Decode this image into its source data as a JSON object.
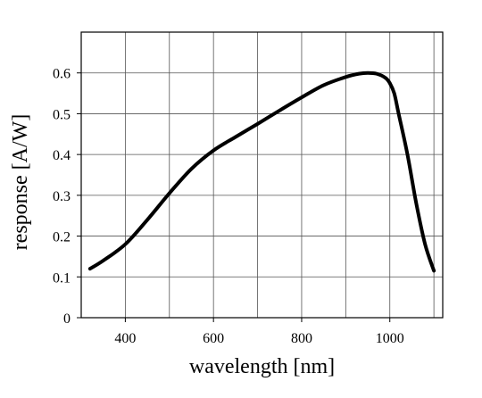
{
  "chart_data": {
    "type": "line",
    "title": "",
    "xlabel": "wavelength [nm]",
    "ylabel": "response [A/W]",
    "xlim": [
      300,
      1120
    ],
    "ylim": [
      0,
      0.7
    ],
    "grid": true,
    "legend": "none",
    "x_ticks": [
      {
        "value": 400,
        "label": "400"
      },
      {
        "value": 600,
        "label": "600"
      },
      {
        "value": 800,
        "label": "800"
      },
      {
        "value": 1000,
        "label": "1000"
      }
    ],
    "x_grid": [
      400,
      500,
      600,
      700,
      800,
      900,
      1000,
      1100
    ],
    "y_ticks": [
      {
        "value": 0,
        "label": "0"
      },
      {
        "value": 0.1,
        "label": "0.1"
      },
      {
        "value": 0.2,
        "label": "0.2"
      },
      {
        "value": 0.3,
        "label": "0.3"
      },
      {
        "value": 0.4,
        "label": "0.4"
      },
      {
        "value": 0.5,
        "label": "0.5"
      },
      {
        "value": 0.6,
        "label": "0.6"
      }
    ],
    "series": [
      {
        "color": "#000000",
        "x": [
          320,
          350,
          400,
          450,
          500,
          550,
          600,
          650,
          700,
          750,
          800,
          850,
          900,
          930,
          950,
          970,
          990,
          1000,
          1010,
          1020,
          1040,
          1060,
          1080,
          1100
        ],
        "y": [
          0.12,
          0.14,
          0.18,
          0.24,
          0.305,
          0.365,
          0.41,
          0.443,
          0.475,
          0.508,
          0.54,
          0.57,
          0.59,
          0.598,
          0.6,
          0.598,
          0.588,
          0.575,
          0.55,
          0.5,
          0.4,
          0.28,
          0.18,
          0.115
        ]
      }
    ]
  }
}
